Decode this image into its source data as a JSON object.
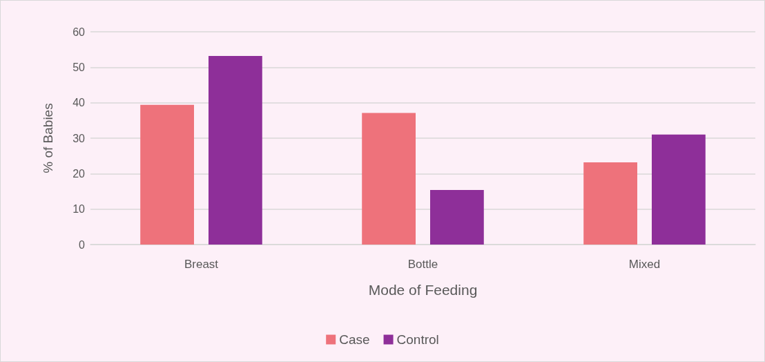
{
  "chart_data": {
    "type": "bar",
    "xlabel": "Mode of Feeding",
    "ylabel": "% of Babies",
    "categories": [
      "Breast",
      "Bottle",
      "Mixed"
    ],
    "series": [
      {
        "name": "Case",
        "color": "#ee727b",
        "values": [
          39.4,
          37.1,
          23.2
        ]
      },
      {
        "name": "Control",
        "color": "#8e2f99",
        "values": [
          53.2,
          15.4,
          31.0
        ]
      }
    ],
    "ylim": [
      0,
      60
    ],
    "yticks": [
      0,
      10,
      20,
      30,
      40,
      50,
      60
    ],
    "grid": "y",
    "legend": "bottom"
  }
}
